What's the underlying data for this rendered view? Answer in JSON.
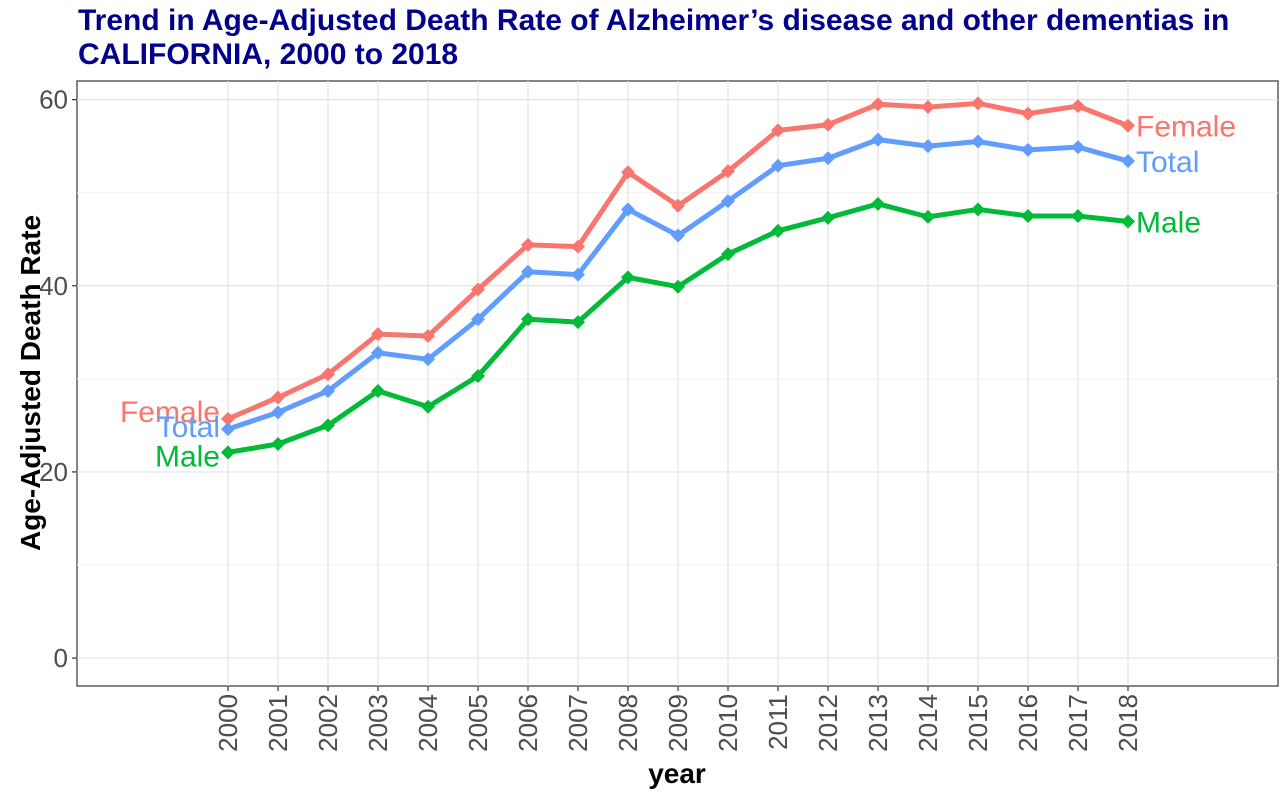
{
  "chart_data": {
    "type": "line",
    "title": "Trend in Age-Adjusted Death Rate of Alzheimer’s disease and other dementias in CALIFORNIA, 2000 to 2018",
    "xlabel": "year",
    "ylabel": "Age-Adjusted Death Rate",
    "x": [
      "2000",
      "2001",
      "2002",
      "2003",
      "2004",
      "2005",
      "2006",
      "2007",
      "2008",
      "2009",
      "2010",
      "2011",
      "2012",
      "2013",
      "2014",
      "2015",
      "2016",
      "2017",
      "2018"
    ],
    "ylim": [
      -3,
      62
    ],
    "yticks": [
      "0",
      "20",
      "40",
      "60"
    ],
    "grid": true,
    "legend": "none (series labeled at line ends)",
    "series": [
      {
        "name": "Female",
        "color": "#F8766D",
        "values": [
          25.7,
          28.0,
          30.5,
          34.8,
          34.6,
          39.6,
          44.4,
          44.2,
          52.2,
          48.6,
          52.3,
          56.7,
          57.3,
          59.5,
          59.2,
          59.6,
          58.5,
          59.3,
          57.2
        ]
      },
      {
        "name": "Total",
        "color": "#619CFF",
        "values": [
          24.6,
          26.4,
          28.7,
          32.8,
          32.1,
          36.4,
          41.5,
          41.2,
          48.2,
          45.4,
          49.1,
          52.9,
          53.7,
          55.7,
          55.0,
          55.5,
          54.6,
          54.9,
          53.4
        ]
      },
      {
        "name": "Male",
        "color": "#00BA38",
        "values": [
          22.1,
          23.0,
          25.0,
          28.7,
          27.0,
          30.3,
          36.4,
          36.1,
          40.9,
          39.9,
          43.4,
          45.9,
          47.3,
          48.8,
          47.4,
          48.2,
          47.5,
          47.5,
          46.9
        ]
      }
    ]
  }
}
